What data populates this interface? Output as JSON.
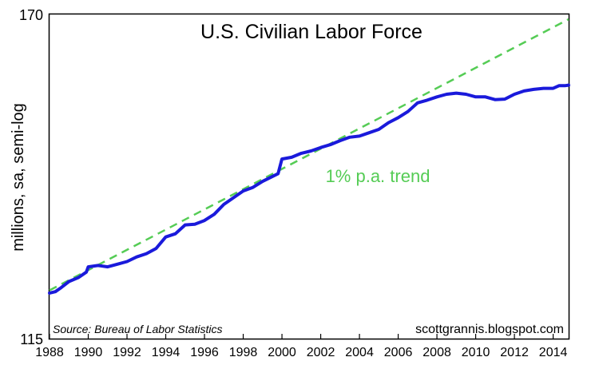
{
  "chart_data": {
    "type": "line",
    "title": "U.S. Civilian Labor Force",
    "ylabel": "millions, sa, semi-log",
    "y_scale": "log",
    "ylim": [
      115,
      170
    ],
    "xlim": [
      1988,
      2014.8
    ],
    "y_ticks": [
      "115",
      "170"
    ],
    "x_ticks": [
      "1988",
      "1990",
      "1992",
      "1994",
      "1996",
      "1998",
      "2000",
      "2002",
      "2004",
      "2006",
      "2008",
      "2010",
      "2012",
      "2014"
    ],
    "source": "Source:  Bureau of Labor Statistics",
    "credit": "scottgrannis.blogspot.com",
    "annotation": "1% p.a. trend",
    "grid": false,
    "colors": {
      "labor_force": "#1a1adb",
      "trend": "#55cc55"
    },
    "series": [
      {
        "values": [
          [
            1988.0,
            121.5
          ],
          [
            1988.3,
            121.7
          ],
          [
            1988.6,
            122.3
          ],
          [
            1989.0,
            123.2
          ],
          [
            1989.5,
            123.8
          ],
          [
            1989.9,
            124.6
          ],
          [
            1990.0,
            125.4
          ],
          [
            1990.5,
            125.6
          ],
          [
            1991.0,
            125.4
          ],
          [
            1991.5,
            125.8
          ],
          [
            1992.0,
            126.2
          ],
          [
            1992.5,
            126.9
          ],
          [
            1993.0,
            127.4
          ],
          [
            1993.5,
            128.2
          ],
          [
            1994.0,
            130.0
          ],
          [
            1994.5,
            130.5
          ],
          [
            1995.0,
            131.9
          ],
          [
            1995.5,
            132.0
          ],
          [
            1996.0,
            132.6
          ],
          [
            1996.5,
            133.6
          ],
          [
            1997.0,
            135.2
          ],
          [
            1997.5,
            136.3
          ],
          [
            1998.0,
            137.4
          ],
          [
            1998.5,
            138.0
          ],
          [
            1999.0,
            139.0
          ],
          [
            1999.8,
            140.3
          ],
          [
            2000.0,
            142.8
          ],
          [
            2000.5,
            143.1
          ],
          [
            2001.0,
            143.8
          ],
          [
            2001.5,
            144.2
          ],
          [
            2002.0,
            144.8
          ],
          [
            2002.5,
            145.3
          ],
          [
            2003.0,
            146.0
          ],
          [
            2003.5,
            146.6
          ],
          [
            2004.0,
            146.8
          ],
          [
            2004.5,
            147.4
          ],
          [
            2005.0,
            148.0
          ],
          [
            2005.5,
            149.2
          ],
          [
            2006.0,
            150.1
          ],
          [
            2006.5,
            151.2
          ],
          [
            2007.0,
            152.8
          ],
          [
            2007.5,
            153.3
          ],
          [
            2008.0,
            153.9
          ],
          [
            2008.5,
            154.4
          ],
          [
            2009.0,
            154.6
          ],
          [
            2009.5,
            154.4
          ],
          [
            2010.0,
            153.9
          ],
          [
            2010.5,
            153.9
          ],
          [
            2011.0,
            153.4
          ],
          [
            2011.5,
            153.5
          ],
          [
            2012.0,
            154.4
          ],
          [
            2012.5,
            155.0
          ],
          [
            2013.0,
            155.3
          ],
          [
            2013.5,
            155.5
          ],
          [
            2014.0,
            155.5
          ],
          [
            2014.3,
            156.0
          ],
          [
            2014.6,
            156.0
          ],
          [
            2014.8,
            156.1
          ]
        ]
      },
      {
        "values": [
          [
            1988.0,
            121.9
          ],
          [
            2014.8,
            169.0
          ]
        ]
      }
    ]
  }
}
